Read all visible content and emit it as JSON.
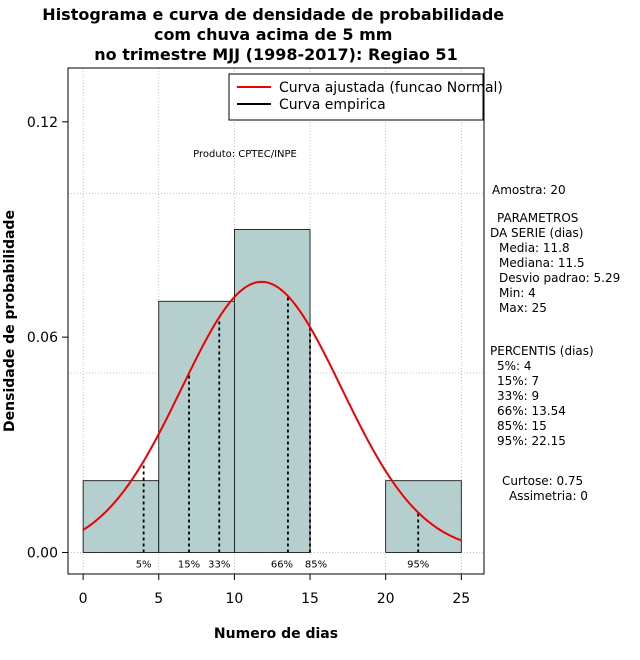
{
  "chart_data": {
    "type": "histogram",
    "title_lines": [
      "Histograma e curva de densidade de probabilidade",
      "com chuva acima de 5 mm",
      "no trimestre MJJ (1998-2017): Regiao 51"
    ],
    "xlabel": "Numero de dias",
    "ylabel": "Densidade de probabilidade",
    "xlim": [
      -1,
      26.5
    ],
    "ylim": [
      -0.006,
      0.135
    ],
    "x_ticks": [
      0,
      5,
      10,
      15,
      20,
      25
    ],
    "x_tick_labels": [
      "0",
      "5",
      "10",
      "15",
      "20",
      "25"
    ],
    "y_ticks": [
      0.0,
      0.06,
      0.12
    ],
    "y_tick_labels": [
      "0.00",
      "0.06",
      "0.12"
    ],
    "grid_x": [
      0,
      5,
      10,
      15,
      20,
      25
    ],
    "grid_y": [
      0.0,
      0.05,
      0.1
    ],
    "bins": [
      {
        "x0": 0,
        "x1": 5,
        "density": 0.02
      },
      {
        "x0": 5,
        "x1": 10,
        "density": 0.07
      },
      {
        "x0": 10,
        "x1": 15,
        "density": 0.09
      },
      {
        "x0": 15,
        "x1": 20,
        "density": 0.0
      },
      {
        "x0": 20,
        "x1": 25,
        "density": 0.02
      }
    ],
    "normal_curve": {
      "mean": 11.8,
      "sd": 5.29,
      "x_from": 0,
      "x_to": 25
    },
    "percentiles": [
      {
        "label": "5%",
        "value": 4
      },
      {
        "label": "15%",
        "value": 7
      },
      {
        "label": "33%",
        "value": 9
      },
      {
        "label": "66%",
        "value": 13.54
      },
      {
        "label": "85%",
        "value": 15
      },
      {
        "label": "95%",
        "value": 22.15
      }
    ],
    "legend": {
      "position": "top-right",
      "entries": [
        {
          "label": "Curva ajustada (funcao Normal)",
          "color": "#ee0000"
        },
        {
          "label": "Curva empirica",
          "color": "#000000"
        }
      ]
    },
    "annotation": "Produto: CPTEC/INPE",
    "colors": {
      "bar_fill": "#b5cece",
      "bar_stroke": "#000000",
      "curve": "#ee0000",
      "grid": "#b0b0b0"
    }
  },
  "side_panel": {
    "amostra": "Amostra: 20",
    "parametros_lines": [
      "PARAMETROS",
      "DA SERIE (dias)",
      "Media: 11.8",
      "Mediana: 11.5",
      "Desvio padrao: 5.29",
      "Min: 4",
      "Max: 25"
    ],
    "percentis_lines": [
      "PERCENTIS (dias)",
      "5%: 4",
      "15%: 7",
      "33%: 9",
      "66%: 13.54",
      "85%: 15",
      "95%: 22.15"
    ],
    "curtose": "Curtose: 0.75",
    "assimetria": "Assimetria: 0"
  }
}
